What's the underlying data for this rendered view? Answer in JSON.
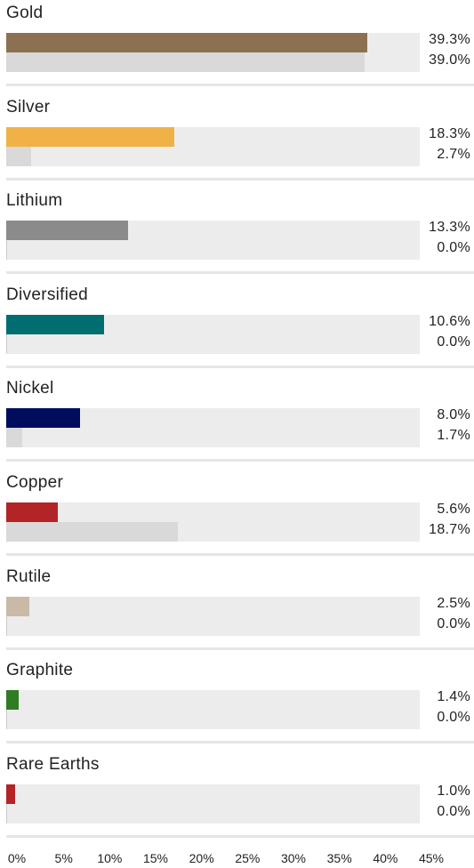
{
  "chart_data": {
    "type": "bar",
    "orientation": "horizontal",
    "categories": [
      "Gold",
      "Silver",
      "Lithium",
      "Diversified",
      "Nickel",
      "Copper",
      "Rutile",
      "Graphite",
      "Rare Earths"
    ],
    "series": [
      {
        "values": [
          39.3,
          18.3,
          13.3,
          10.6,
          8.0,
          5.6,
          2.5,
          1.4,
          1.0
        ],
        "labels": [
          "39.3%",
          "18.3%",
          "13.3%",
          "10.6%",
          "8.0%",
          "5.6%",
          "2.5%",
          "1.4%",
          "1.0%"
        ],
        "colors": [
          "#8b7152",
          "#f0b246",
          "#8b8b8b",
          "#006e70",
          "#000d5c",
          "#b22426",
          "#c9b9a6",
          "#2e7d22",
          "#b22426"
        ]
      },
      {
        "values": [
          39.0,
          2.7,
          0.0,
          0.0,
          1.7,
          18.7,
          0.0,
          0.0,
          0.0
        ],
        "labels": [
          "39.0%",
          "2.7%",
          "0.0%",
          "0.0%",
          "1.7%",
          "18.7%",
          "0.0%",
          "0.0%",
          "0.0%"
        ],
        "color": "#d9d9d9"
      }
    ],
    "xlim": [
      0,
      45
    ],
    "x_ticks": [
      "0%",
      "5%",
      "10%",
      "15%",
      "20%",
      "25%",
      "30%",
      "35%",
      "40%",
      "45%"
    ],
    "track_color": "#ececec",
    "grid": false
  }
}
